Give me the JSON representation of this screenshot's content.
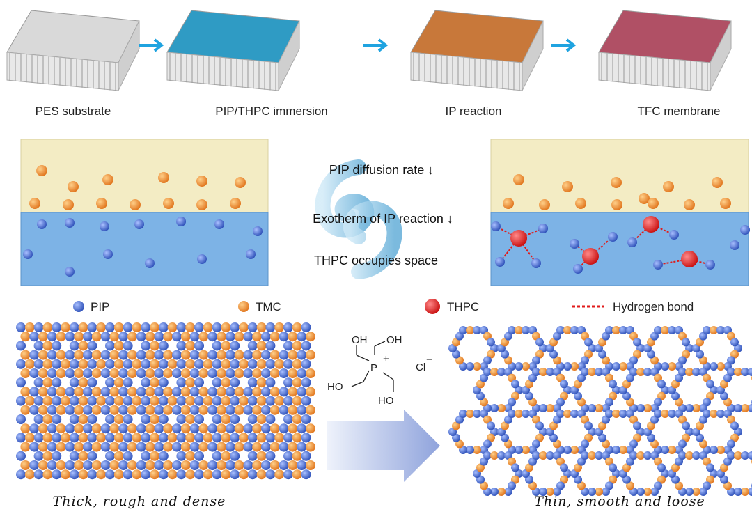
{
  "steps": [
    {
      "label": "PES substrate",
      "color": "#d9d9d9"
    },
    {
      "label": "PIP/THPC immersion",
      "color": "#2f9bc4"
    },
    {
      "label": "IP reaction",
      "color": "#c8783a"
    },
    {
      "label": "TFC membrane",
      "color": "#b05065"
    }
  ],
  "mechanism": {
    "line1": "PIP diffusion rate ↓",
    "line2": "Exotherm of IP reaction ↓",
    "line3": "THPC occupies space"
  },
  "legend": {
    "pip": "PIP",
    "tmc": "TMC",
    "thpc": "THPC",
    "hbond": "Hydrogen bond"
  },
  "colors": {
    "pip": "#3a5fcd",
    "tmc": "#f08a24",
    "thpc": "#e01b1b",
    "organic": "#f3ecc4",
    "aqueous": "#7db3e6",
    "arrow": "#1fa3e0"
  },
  "molecule": {
    "oh1": "OH",
    "oh2": "OH",
    "ho1": "HO",
    "ho2": "HO",
    "p": "P",
    "plus": "+",
    "cl": "Cl",
    "minus": "−"
  },
  "captions": {
    "left": "Thick, rough and dense",
    "right": "Thin, smooth and loose"
  }
}
